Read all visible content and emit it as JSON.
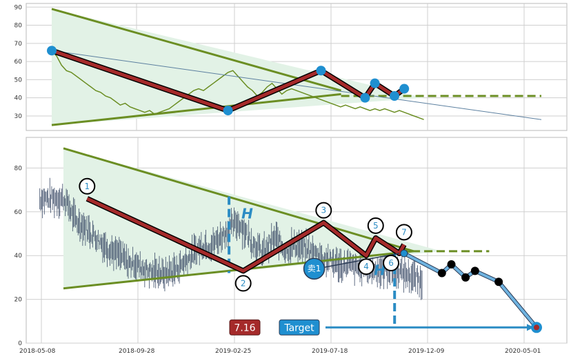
{
  "chart_data": [
    {
      "type": "line",
      "title": "",
      "ylim": [
        22,
        92
      ],
      "y_ticks": [
        "30",
        "40",
        "50",
        "60",
        "70",
        "80",
        "90"
      ],
      "grid": true,
      "colors": {
        "price": "#6b8e23",
        "zigzag": "#a52a2a",
        "marker": "#1f8fd0",
        "trendline": "#6b8e23",
        "fill": "#e2f2e6"
      },
      "price_path": [
        [
          0.0,
          66
        ],
        [
          0.01,
          63
        ],
        [
          0.02,
          58
        ],
        [
          0.03,
          55
        ],
        [
          0.04,
          54
        ],
        [
          0.05,
          52
        ],
        [
          0.06,
          50
        ],
        [
          0.07,
          48
        ],
        [
          0.08,
          46
        ],
        [
          0.09,
          44
        ],
        [
          0.1,
          43
        ],
        [
          0.11,
          41
        ],
        [
          0.12,
          40
        ],
        [
          0.13,
          38
        ],
        [
          0.14,
          36
        ],
        [
          0.15,
          37
        ],
        [
          0.16,
          35
        ],
        [
          0.17,
          34
        ],
        [
          0.18,
          33
        ],
        [
          0.19,
          32
        ],
        [
          0.2,
          33
        ],
        [
          0.21,
          31
        ],
        [
          0.22,
          32
        ],
        [
          0.23,
          33
        ],
        [
          0.24,
          34
        ],
        [
          0.25,
          36
        ],
        [
          0.26,
          38
        ],
        [
          0.27,
          40
        ],
        [
          0.28,
          42
        ],
        [
          0.29,
          44
        ],
        [
          0.3,
          45
        ],
        [
          0.31,
          44
        ],
        [
          0.32,
          46
        ],
        [
          0.33,
          48
        ],
        [
          0.34,
          50
        ],
        [
          0.35,
          52
        ],
        [
          0.36,
          54
        ],
        [
          0.37,
          55
        ],
        [
          0.38,
          52
        ],
        [
          0.39,
          49
        ],
        [
          0.4,
          46
        ],
        [
          0.41,
          44
        ],
        [
          0.42,
          41
        ],
        [
          0.43,
          43
        ],
        [
          0.44,
          46
        ],
        [
          0.45,
          48
        ],
        [
          0.46,
          45
        ],
        [
          0.47,
          42
        ],
        [
          0.48,
          44
        ],
        [
          0.49,
          45
        ],
        [
          0.5,
          44
        ],
        [
          0.51,
          43
        ],
        [
          0.52,
          42
        ],
        [
          0.53,
          41
        ],
        [
          0.54,
          40
        ],
        [
          0.55,
          39
        ],
        [
          0.56,
          38
        ],
        [
          0.57,
          37
        ],
        [
          0.58,
          36
        ],
        [
          0.59,
          35
        ],
        [
          0.6,
          36
        ],
        [
          0.61,
          35
        ],
        [
          0.62,
          34
        ],
        [
          0.63,
          35
        ],
        [
          0.64,
          34
        ],
        [
          0.65,
          33
        ],
        [
          0.66,
          34
        ],
        [
          0.67,
          33
        ],
        [
          0.68,
          34
        ],
        [
          0.69,
          33
        ],
        [
          0.7,
          32
        ],
        [
          0.71,
          33
        ],
        [
          0.72,
          32
        ],
        [
          0.73,
          31
        ],
        [
          0.74,
          30
        ],
        [
          0.75,
          29
        ],
        [
          0.76,
          28
        ]
      ],
      "zigzag": [
        [
          0.0,
          66
        ],
        [
          0.36,
          33
        ],
        [
          0.55,
          55
        ],
        [
          0.64,
          40
        ],
        [
          0.66,
          48
        ],
        [
          0.7,
          41
        ],
        [
          0.72,
          45
        ]
      ],
      "trend_upper": [
        [
          0.0,
          89
        ],
        [
          0.76,
          40
        ]
      ],
      "trend_lower": [
        [
          0.0,
          25
        ],
        [
          0.76,
          40
        ]
      ],
      "projection": [
        [
          0.0,
          66
        ],
        [
          1.0,
          28
        ]
      ]
    },
    {
      "type": "line",
      "title": "",
      "ylim": [
        0,
        94
      ],
      "y_ticks": [
        "0",
        "20",
        "40",
        "60",
        "80"
      ],
      "x_ticks": [
        "2018-05-08",
        "2018-09-28",
        "2019-02-25",
        "2019-07-18",
        "2019-12-09",
        "2020-05-01"
      ],
      "grid": true,
      "pattern_points": [
        {
          "label": "1",
          "x": 0.05,
          "y": 66
        },
        {
          "label": "2",
          "x": 0.38,
          "y": 33
        },
        {
          "label": "3",
          "x": 0.55,
          "y": 55
        },
        {
          "label": "4",
          "x": 0.64,
          "y": 40
        },
        {
          "label": "5",
          "x": 0.66,
          "y": 48
        },
        {
          "label": "6",
          "x": 0.71,
          "y": 41
        },
        {
          "label": "7",
          "x": 0.72,
          "y": 45
        }
      ],
      "projection_points": [
        {
          "x": 0.72,
          "y": 41
        },
        {
          "x": 0.8,
          "y": 32
        },
        {
          "x": 0.82,
          "y": 36
        },
        {
          "x": 0.85,
          "y": 30
        },
        {
          "x": 0.87,
          "y": 33
        },
        {
          "x": 0.92,
          "y": 28
        },
        {
          "x": 1.0,
          "y": 7.16
        }
      ],
      "annotations": {
        "h_label": "H",
        "sell_label": "卖1",
        "target_label": "Target",
        "target_value": "7.16"
      }
    }
  ]
}
